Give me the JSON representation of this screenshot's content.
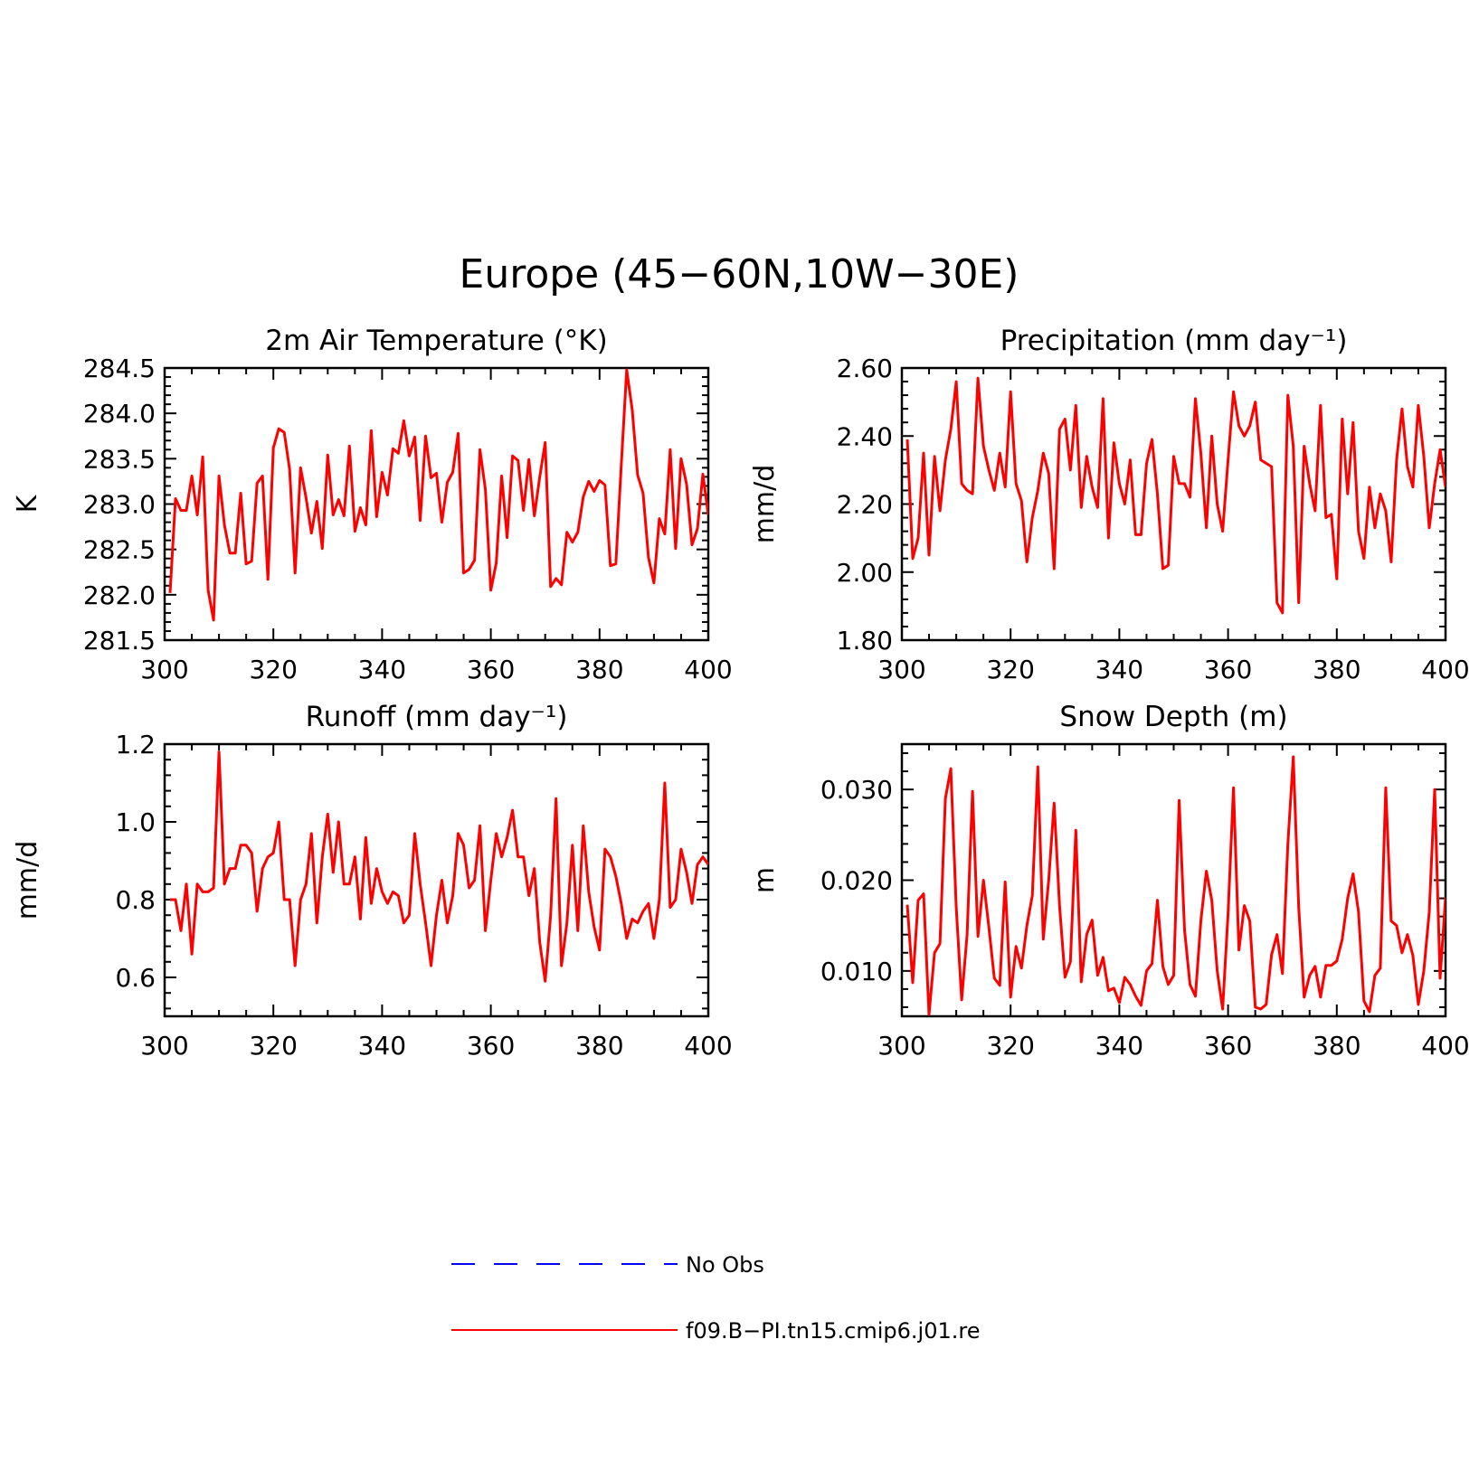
{
  "figure_title": "Europe (45−60N,10W−30E)",
  "colors": {
    "model": "#ff0000",
    "obs": "#0000ff",
    "axis": "#000000"
  },
  "legend": [
    {
      "label": "No Obs",
      "style": "dashed",
      "color": "#0000ff"
    },
    {
      "label": "f09.B−PI.tn15.cmip6.j01.re",
      "style": "solid",
      "color": "#ff0000"
    }
  ],
  "chart_data": [
    {
      "type": "line",
      "title": "2m Air Temperature (°K)",
      "ylabel": "K",
      "xlim": [
        300,
        400
      ],
      "ylim": [
        281.5,
        284.5
      ],
      "xticks": [
        300,
        320,
        340,
        360,
        380,
        400
      ],
      "yticks": [
        281.5,
        282.0,
        282.5,
        283.0,
        283.5,
        284.0,
        284.5
      ],
      "ytick_labels": [
        "281.5",
        "282.0",
        "282.5",
        "283.0",
        "283.5",
        "284.0",
        "284.5"
      ],
      "series": [
        {
          "x_start": 301,
          "x_step": 1,
          "values": [
            282.02,
            283.06,
            282.93,
            282.93,
            283.31,
            282.88,
            283.52,
            282.05,
            281.72,
            283.31,
            282.77,
            282.46,
            282.46,
            283.12,
            282.34,
            282.37,
            283.23,
            283.31,
            282.17,
            283.62,
            283.83,
            283.79,
            283.38,
            282.24,
            283.4,
            283.07,
            282.68,
            283.03,
            282.51,
            283.54,
            282.88,
            283.05,
            282.87,
            283.64,
            282.7,
            282.96,
            282.77,
            283.81,
            282.86,
            283.35,
            283.1,
            283.61,
            283.56,
            283.92,
            283.53,
            283.74,
            282.82,
            283.75,
            283.29,
            283.34,
            282.8,
            283.24,
            283.35,
            283.78,
            282.24,
            282.28,
            282.38,
            283.6,
            283.16,
            282.05,
            282.35,
            283.31,
            282.63,
            283.53,
            283.48,
            282.93,
            283.49,
            282.87,
            283.3,
            283.68,
            282.09,
            282.18,
            282.11,
            282.69,
            282.58,
            282.69,
            283.08,
            283.25,
            283.14,
            283.26,
            283.21,
            282.32,
            282.34,
            283.43,
            284.48,
            284.04,
            283.32,
            283.12,
            282.41,
            282.13,
            282.84,
            282.67,
            283.6,
            282.51,
            283.5,
            283.22,
            282.55,
            282.73,
            283.33,
            282.88
          ]
        }
      ]
    },
    {
      "type": "line",
      "title": "Precipitation (mm day⁻¹)",
      "ylabel": "mm/d",
      "xlim": [
        300,
        400
      ],
      "ylim": [
        1.8,
        2.6
      ],
      "xticks": [
        300,
        320,
        340,
        360,
        380,
        400
      ],
      "yticks": [
        1.8,
        2.0,
        2.2,
        2.4,
        2.6
      ],
      "ytick_labels": [
        "1.80",
        "2.00",
        "2.20",
        "2.40",
        "2.60"
      ],
      "series": [
        {
          "x_start": 301,
          "x_step": 1,
          "values": [
            2.39,
            2.04,
            2.1,
            2.35,
            2.05,
            2.34,
            2.18,
            2.33,
            2.42,
            2.56,
            2.26,
            2.24,
            2.23,
            2.57,
            2.37,
            2.3,
            2.24,
            2.35,
            2.25,
            2.53,
            2.26,
            2.21,
            2.03,
            2.16,
            2.24,
            2.35,
            2.29,
            2.01,
            2.42,
            2.45,
            2.3,
            2.49,
            2.19,
            2.34,
            2.25,
            2.19,
            2.51,
            2.1,
            2.38,
            2.26,
            2.2,
            2.33,
            2.11,
            2.11,
            2.32,
            2.39,
            2.23,
            2.01,
            2.02,
            2.34,
            2.26,
            2.26,
            2.22,
            2.51,
            2.35,
            2.13,
            2.4,
            2.2,
            2.12,
            2.33,
            2.53,
            2.43,
            2.4,
            2.43,
            2.5,
            2.33,
            2.32,
            2.31,
            1.91,
            1.88,
            2.52,
            2.37,
            1.91,
            2.37,
            2.26,
            2.18,
            2.49,
            2.16,
            2.17,
            1.98,
            2.45,
            2.23,
            2.44,
            2.12,
            2.04,
            2.25,
            2.13,
            2.23,
            2.18,
            2.03,
            2.33,
            2.48,
            2.31,
            2.25,
            2.49,
            2.34,
            2.13,
            2.26,
            2.36,
            2.25
          ]
        }
      ]
    },
    {
      "type": "line",
      "title": "Runoff (mm day⁻¹)",
      "ylabel": "mm/d",
      "xlim": [
        300,
        400
      ],
      "ylim": [
        0.5,
        1.2
      ],
      "xticks": [
        300,
        320,
        340,
        360,
        380,
        400
      ],
      "yticks": [
        0.6,
        0.8,
        1.0,
        1.2
      ],
      "ytick_labels": [
        "0.6",
        "0.8",
        "1.0",
        "1.2"
      ],
      "series": [
        {
          "x_start": 301,
          "x_step": 1,
          "values": [
            0.8,
            0.8,
            0.72,
            0.84,
            0.66,
            0.84,
            0.82,
            0.82,
            0.83,
            1.18,
            0.84,
            0.88,
            0.88,
            0.94,
            0.94,
            0.92,
            0.77,
            0.88,
            0.91,
            0.92,
            1.0,
            0.8,
            0.8,
            0.63,
            0.8,
            0.84,
            0.97,
            0.74,
            0.91,
            1.02,
            0.87,
            1.0,
            0.84,
            0.84,
            0.91,
            0.75,
            0.96,
            0.79,
            0.88,
            0.82,
            0.79,
            0.82,
            0.81,
            0.74,
            0.76,
            0.97,
            0.84,
            0.74,
            0.63,
            0.76,
            0.85,
            0.74,
            0.81,
            0.97,
            0.94,
            0.83,
            0.85,
            0.99,
            0.72,
            0.85,
            0.97,
            0.91,
            0.96,
            1.03,
            0.91,
            0.91,
            0.81,
            0.88,
            0.69,
            0.59,
            0.76,
            1.06,
            0.63,
            0.74,
            0.94,
            0.72,
            0.99,
            0.82,
            0.73,
            0.67,
            0.93,
            0.91,
            0.86,
            0.79,
            0.7,
            0.75,
            0.74,
            0.77,
            0.79,
            0.7,
            0.8,
            1.1,
            0.78,
            0.8,
            0.93,
            0.87,
            0.79,
            0.89,
            0.91,
            0.89
          ]
        }
      ]
    },
    {
      "type": "line",
      "title": "Snow Depth (m)",
      "ylabel": "m",
      "xlim": [
        300,
        400
      ],
      "ylim": [
        0.005,
        0.035
      ],
      "xticks": [
        300,
        320,
        340,
        360,
        380,
        400
      ],
      "yticks": [
        0.01,
        0.02,
        0.03
      ],
      "ytick_labels": [
        "0.010",
        "0.020",
        "0.030"
      ],
      "series": [
        {
          "x_start": 301,
          "x_step": 1,
          "values": [
            0.0173,
            0.0087,
            0.0178,
            0.0185,
            0.0052,
            0.012,
            0.013,
            0.029,
            0.0323,
            0.017,
            0.0068,
            0.014,
            0.0298,
            0.0138,
            0.02,
            0.0148,
            0.0092,
            0.0084,
            0.0198,
            0.0071,
            0.0127,
            0.0103,
            0.015,
            0.0183,
            0.0325,
            0.0135,
            0.02,
            0.0285,
            0.0172,
            0.0093,
            0.011,
            0.0255,
            0.0088,
            0.014,
            0.0156,
            0.0095,
            0.0115,
            0.0078,
            0.0081,
            0.0065,
            0.0093,
            0.0085,
            0.0072,
            0.0062,
            0.01,
            0.0108,
            0.0178,
            0.0105,
            0.0085,
            0.0095,
            0.0288,
            0.0145,
            0.0085,
            0.0072,
            0.0155,
            0.021,
            0.0178,
            0.01,
            0.0058,
            0.0163,
            0.0302,
            0.0123,
            0.0172,
            0.0155,
            0.006,
            0.0058,
            0.0063,
            0.0118,
            0.014,
            0.0097,
            0.024,
            0.0336,
            0.017,
            0.0071,
            0.0095,
            0.0105,
            0.0071,
            0.0106,
            0.0106,
            0.0111,
            0.0135,
            0.018,
            0.0207,
            0.0165,
            0.0067,
            0.0055,
            0.0095,
            0.0103,
            0.0302,
            0.0155,
            0.015,
            0.012,
            0.014,
            0.0117,
            0.0063,
            0.01,
            0.0165,
            0.03,
            0.0092,
            0.0181
          ]
        }
      ]
    }
  ]
}
